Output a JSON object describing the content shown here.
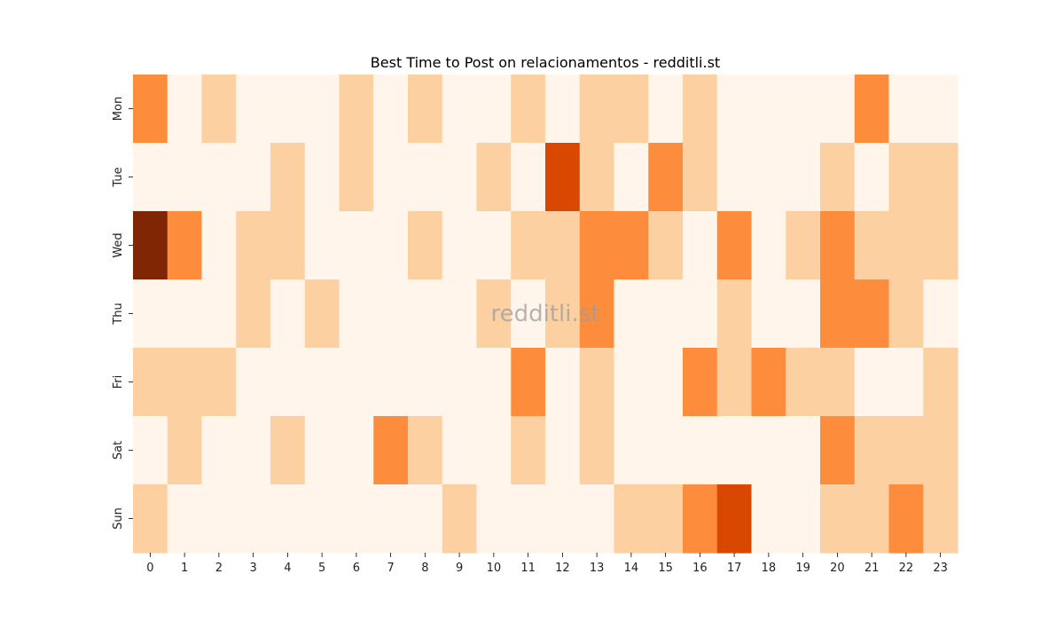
{
  "chart_data": {
    "type": "heatmap",
    "title": "Best Time to Post on relacionamentos - redditli.st",
    "watermark": "redditli.st",
    "x_categories": [
      "0",
      "1",
      "2",
      "3",
      "4",
      "5",
      "6",
      "7",
      "8",
      "9",
      "10",
      "11",
      "12",
      "13",
      "14",
      "15",
      "16",
      "17",
      "18",
      "19",
      "20",
      "21",
      "22",
      "23"
    ],
    "y_categories": [
      "Mon",
      "Tue",
      "Wed",
      "Thu",
      "Fri",
      "Sat",
      "Sun"
    ],
    "values": [
      [
        2,
        0,
        1,
        0,
        0,
        0,
        1,
        0,
        1,
        0,
        0,
        1,
        0,
        1,
        1,
        0,
        1,
        0,
        0,
        0,
        0,
        2,
        0,
        0
      ],
      [
        0,
        0,
        0,
        0,
        1,
        0,
        1,
        0,
        0,
        0,
        1,
        0,
        3,
        1,
        0,
        2,
        1,
        0,
        0,
        0,
        1,
        0,
        1,
        1
      ],
      [
        4,
        2,
        0,
        1,
        1,
        0,
        0,
        0,
        1,
        0,
        0,
        1,
        1,
        2,
        2,
        1,
        0,
        2,
        0,
        1,
        2,
        1,
        1,
        1
      ],
      [
        0,
        0,
        0,
        1,
        0,
        1,
        0,
        0,
        0,
        0,
        1,
        0,
        1,
        2,
        0,
        0,
        0,
        1,
        0,
        0,
        2,
        2,
        1,
        0
      ],
      [
        1,
        1,
        1,
        0,
        0,
        0,
        0,
        0,
        0,
        0,
        0,
        2,
        0,
        1,
        0,
        0,
        2,
        1,
        2,
        1,
        1,
        0,
        0,
        1
      ],
      [
        0,
        1,
        0,
        0,
        1,
        0,
        0,
        2,
        1,
        0,
        0,
        1,
        0,
        1,
        0,
        0,
        0,
        0,
        0,
        0,
        2,
        1,
        1,
        1
      ],
      [
        1,
        0,
        0,
        0,
        0,
        0,
        0,
        0,
        0,
        1,
        0,
        0,
        0,
        0,
        1,
        1,
        2,
        3,
        0,
        0,
        1,
        1,
        2,
        1
      ]
    ],
    "colors": [
      "#fff5eb",
      "#fdd0a2",
      "#fd8d3c",
      "#d94801",
      "#7f2704"
    ],
    "colorbar": false,
    "grid": false
  }
}
